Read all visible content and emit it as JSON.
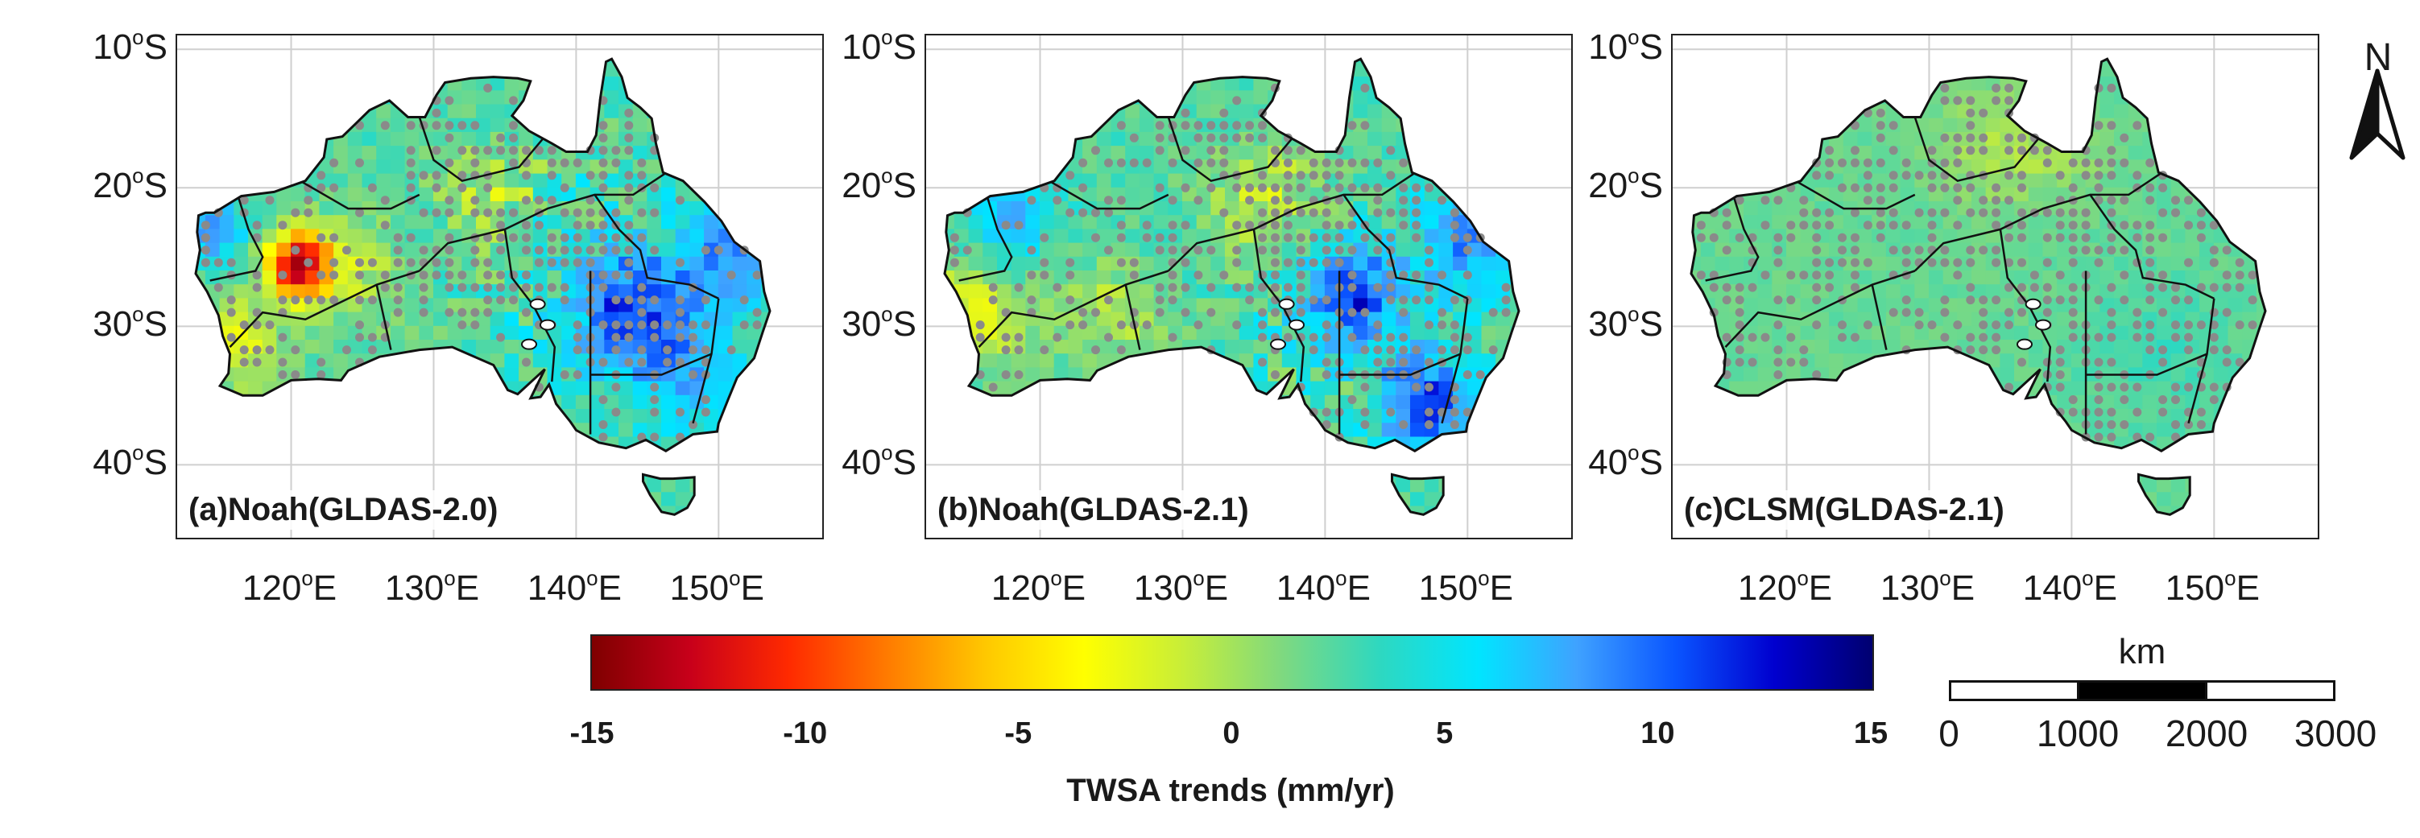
{
  "panels": [
    {
      "label": "(a)Noah(GLDAS-2.0)",
      "pattern": "noah20"
    },
    {
      "label": "(b)Noah(GLDAS-2.1)",
      "pattern": "noah21"
    },
    {
      "label": "(c)CLSM(GLDAS-2.1)",
      "pattern": "clsm21"
    }
  ],
  "latitude_labels": [
    {
      "deg": "10",
      "sup": "o",
      "hemi": "S"
    },
    {
      "deg": "20",
      "sup": "o",
      "hemi": "S"
    },
    {
      "deg": "30",
      "sup": "o",
      "hemi": "S"
    },
    {
      "deg": "40",
      "sup": "o",
      "hemi": "S"
    }
  ],
  "longitude_labels": [
    {
      "deg": "120",
      "sup": "o",
      "hemi": "E"
    },
    {
      "deg": "130",
      "sup": "o",
      "hemi": "E"
    },
    {
      "deg": "140",
      "sup": "o",
      "hemi": "E"
    },
    {
      "deg": "150",
      "sup": "o",
      "hemi": "E"
    }
  ],
  "colorbar": {
    "title": "TWSA trends (mm/yr)",
    "ticks": [
      "-15",
      "-10",
      "-5",
      "0",
      "5",
      "10",
      "15"
    ],
    "min": -15,
    "max": 15
  },
  "north_arrow": {
    "letter": "N"
  },
  "scale_bar": {
    "unit": "km",
    "ticks": [
      "0",
      "1000",
      "2000",
      "3000"
    ],
    "fill": [
      "#ffffff",
      "#000000",
      "#ffffff"
    ]
  },
  "colors": {
    "dots": "#8a8a8a",
    "coast": "#111111",
    "grid": "#cfcfcf"
  }
}
